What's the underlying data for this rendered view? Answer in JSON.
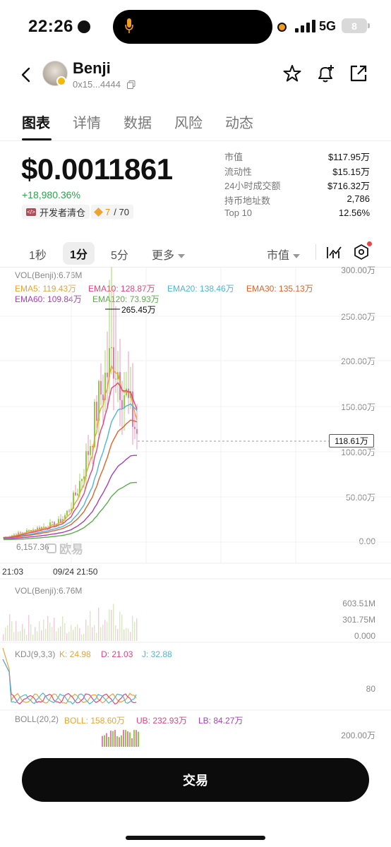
{
  "status_bar": {
    "time": "22:26",
    "network": "5G",
    "battery": "8"
  },
  "header": {
    "token_name": "Benji",
    "address": "0x15...4444"
  },
  "tabs": [
    {
      "label": "图表",
      "active": true
    },
    {
      "label": "详情"
    },
    {
      "label": "数据"
    },
    {
      "label": "风险"
    },
    {
      "label": "动态"
    }
  ],
  "price": {
    "value": "$0.0011861",
    "change": "+18,980.36%"
  },
  "badges": {
    "dev": "开发者清仓",
    "holders_current": "7",
    "holders_total": "/ 70"
  },
  "stats": [
    {
      "label": "市值",
      "value": "$117.95万"
    },
    {
      "label": "流动性",
      "value": "$15.15万"
    },
    {
      "label": "24小时成交额",
      "value": "$716.32万"
    },
    {
      "label": "持币地址数",
      "value": "2,786"
    },
    {
      "label": "Top 10",
      "value": "12.56%"
    }
  ],
  "timeframes": {
    "t1": "1秒",
    "t2": "1分",
    "t3": "5分",
    "more": "更多",
    "metric": "市值"
  },
  "chart": {
    "vol_label": "VOL(Benji):6.76M",
    "ema": {
      "ema5": "EMA5: 119.43万",
      "ema10": "EMA10: 128.87万",
      "ema20": "EMA20: 138.46万",
      "ema30": "EMA30: 135.13万",
      "ema60": "EMA60: 109.84万",
      "ema120": "EMA120: 73.93万"
    },
    "peak_label": "265.45万",
    "current_label": "118.61万",
    "y_ticks": [
      "300.00万",
      "250.00万",
      "200.00万",
      "150.00万",
      "100.00万",
      "50.00万",
      "0.00"
    ],
    "low_label": "6,157.36",
    "watermark": "欧易",
    "x_ticks": [
      "21:03",
      "09/24 21:50"
    ],
    "vol_panel": {
      "label": "VOL(Benji):6.76M",
      "ticks": [
        "603.51M",
        "301.75M",
        "0.000"
      ]
    },
    "kdj": {
      "label": "KDJ(9,3,3)",
      "k": "K: 24.98",
      "d": "D: 21.03",
      "j": "J: 32.88",
      "tick": "80"
    },
    "boll": {
      "label": "BOLL(20,2)",
      "boll": "BOLL: 158.60万",
      "ub": "UB: 232.93万",
      "lb": "LB: 84.27万",
      "tick": "200.00万"
    }
  },
  "colors": {
    "ema5": "#e8a33a",
    "ema10": "#e0457b",
    "ema20": "#4fb5d6",
    "ema30": "#e0632a",
    "ema60": "#a83fb8",
    "ema120": "#5aae4a",
    "up": "#8ccf3e",
    "down": "#e97ab0"
  },
  "trade_button": "交易"
}
